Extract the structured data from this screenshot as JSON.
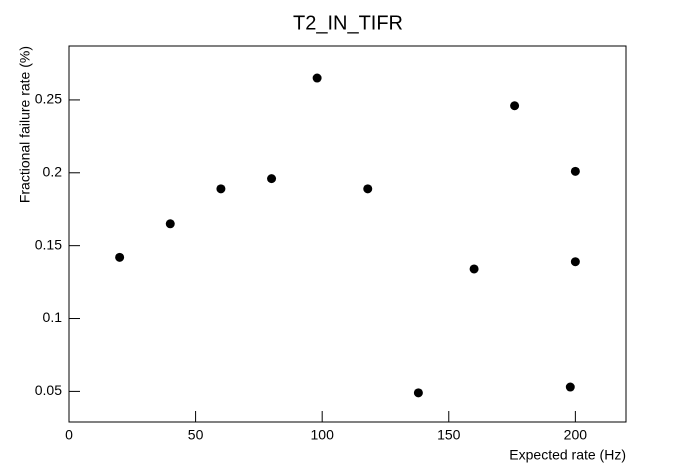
{
  "chart_data": {
    "type": "scatter",
    "title": "T2_IN_TIFR",
    "x_label": "Expected rate (Hz)",
    "y_label": "Fractional failure rate (%)",
    "x": [
      20,
      40,
      60,
      80,
      98,
      118,
      138,
      160,
      176,
      200,
      200,
      198
    ],
    "values": [
      0.142,
      0.165,
      0.189,
      0.196,
      0.265,
      0.189,
      0.049,
      0.134,
      0.246,
      0.201,
      0.139,
      0.053
    ],
    "color": "#000000",
    "xlim": [
      0,
      220
    ],
    "xticks": [
      0,
      50,
      100,
      150,
      200
    ],
    "ylim": [
      0.029,
      0.287
    ],
    "yticks": [
      0.05,
      0.1,
      0.15,
      0.2,
      0.25
    ],
    "grid": false
  }
}
